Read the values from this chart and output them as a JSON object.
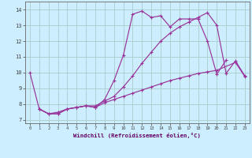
{
  "background_color": "#cceeff",
  "grid_color": "#aacccc",
  "line_color": "#993399",
  "xlim": [
    -0.5,
    23.5
  ],
  "ylim": [
    6.8,
    14.5
  ],
  "yticks": [
    7,
    8,
    9,
    10,
    11,
    12,
    13,
    14
  ],
  "xticks": [
    0,
    1,
    2,
    3,
    4,
    5,
    6,
    7,
    8,
    9,
    10,
    11,
    12,
    13,
    14,
    15,
    16,
    17,
    18,
    19,
    20,
    21,
    22,
    23
  ],
  "xlabel": "Windchill (Refroidissement éolien,°C)",
  "series1_x": [
    0,
    1,
    2,
    3,
    4,
    5,
    6,
    7,
    8,
    9,
    10,
    11,
    12,
    13,
    14,
    15,
    16,
    17,
    18,
    19,
    20,
    21
  ],
  "series1_y": [
    10.0,
    7.7,
    7.4,
    7.4,
    7.7,
    7.8,
    7.9,
    7.8,
    8.3,
    9.5,
    11.1,
    13.7,
    13.9,
    13.5,
    13.6,
    12.9,
    13.4,
    13.4,
    13.4,
    12.0,
    9.9,
    10.8
  ],
  "series2_x": [
    1,
    2,
    3,
    4,
    5,
    6,
    7,
    8,
    9,
    10,
    11,
    12,
    13,
    14,
    15,
    16,
    17,
    18,
    19,
    20,
    21,
    22,
    23
  ],
  "series2_y": [
    7.7,
    7.4,
    7.5,
    7.7,
    7.8,
    7.9,
    7.9,
    8.2,
    8.5,
    9.1,
    9.8,
    10.6,
    11.3,
    12.0,
    12.5,
    12.9,
    13.2,
    13.5,
    13.8,
    13.0,
    9.95,
    10.75,
    9.8
  ],
  "series3_x": [
    1,
    2,
    3,
    4,
    5,
    6,
    7,
    8,
    9,
    10,
    11,
    12,
    13,
    14,
    15,
    16,
    17,
    18,
    19,
    20,
    22,
    23
  ],
  "series3_y": [
    7.7,
    7.4,
    7.4,
    7.7,
    7.8,
    7.9,
    7.8,
    8.1,
    8.3,
    8.5,
    8.7,
    8.9,
    9.1,
    9.3,
    9.5,
    9.65,
    9.8,
    9.95,
    10.05,
    10.15,
    10.65,
    9.75
  ]
}
